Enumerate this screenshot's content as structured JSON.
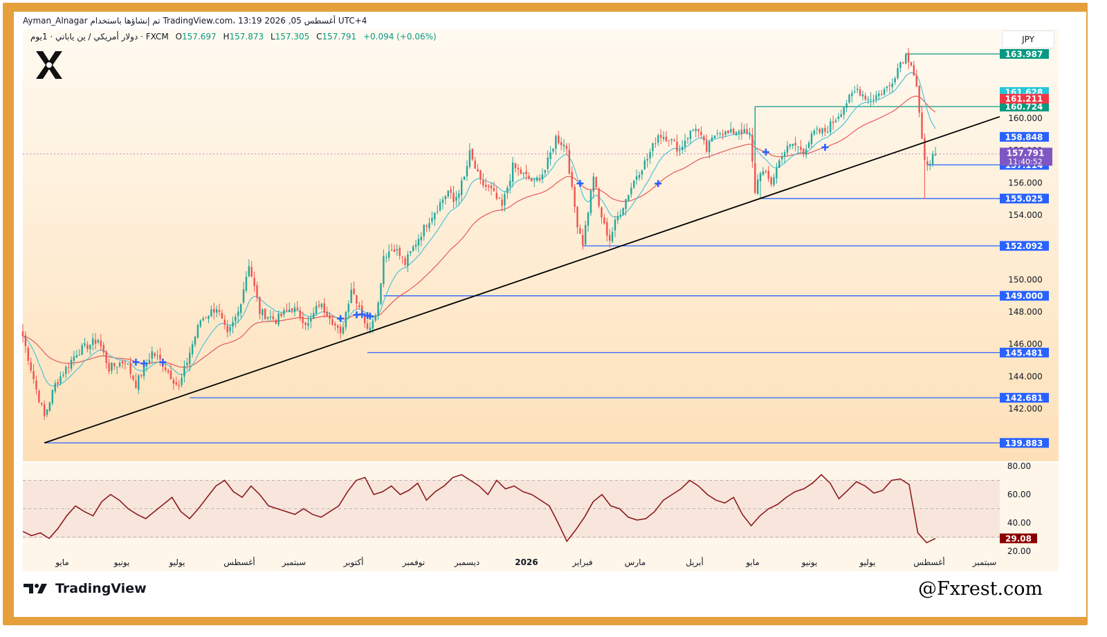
{
  "header": {
    "line1": "Ayman_Alnagar تم إنشاؤها باستخدام TradingView.com، 13:19 2026 ,05 أغسطس UTC+4",
    "symbol": "دولار أمريكي / ين ياباني · 1يوم · FXCM",
    "open_label": "O",
    "open": "157.697",
    "high_label": "H",
    "high": "157.873",
    "low_label": "L",
    "low": "157.305",
    "close_label": "C",
    "close": "157.791",
    "change": "+0.094 (+0.06%)"
  },
  "currency_button": "JPY",
  "brand": {
    "name": "TradingView",
    "watermark": "@Fxrest.com"
  },
  "colors": {
    "frame": "#e5a03c",
    "bull": "#26a69a",
    "bear": "#ef5350",
    "ma_fast": "#4fc3d9",
    "ma_slow": "#e35a5a",
    "level_blue": "#2962ff",
    "level_green": "#089981",
    "trendline": "#000000",
    "rsi_line": "#8b1a1a",
    "countdown": "#7e57c2",
    "signal_cross": "#2962ff"
  },
  "chart_data": [
    {
      "type": "candlestick",
      "symbol": "USD/JPY",
      "timeframe": "1D",
      "y_axis": {
        "range": [
          138.8,
          164.7
        ],
        "ticks": [
          "142.000",
          "144.000",
          "146.000",
          "148.000",
          "150.000",
          "152.000",
          "154.000",
          "156.000",
          "158.000",
          "160.000"
        ]
      },
      "x_axis": {
        "labels": [
          "مايو",
          "يونيو",
          "يوليو",
          "أغسطس",
          "سبتمبر",
          "أكتوبر",
          "نوفمبر",
          "ديسمبر",
          "2026",
          "فبراير",
          "مارس",
          "أبريل",
          "مايو",
          "يونيو",
          "يوليو",
          "أغسطس",
          "سبتمبر"
        ],
        "bold_label": "2026"
      },
      "anchors": [
        [
          0,
          146.5
        ],
        [
          5,
          143.2
        ],
        [
          8,
          141.5
        ],
        [
          12,
          143.5
        ],
        [
          20,
          145.5
        ],
        [
          28,
          146.3
        ],
        [
          32,
          144.5
        ],
        [
          38,
          145.0
        ],
        [
          42,
          143.5
        ],
        [
          48,
          145.5
        ],
        [
          52,
          144.8
        ],
        [
          58,
          143.3
        ],
        [
          62,
          145.5
        ],
        [
          66,
          147.5
        ],
        [
          72,
          148.3
        ],
        [
          76,
          146.5
        ],
        [
          80,
          148.0
        ],
        [
          84,
          151.0
        ],
        [
          88,
          148.0
        ],
        [
          94,
          147.5
        ],
        [
          100,
          148.3
        ],
        [
          106,
          147.2
        ],
        [
          110,
          148.5
        ],
        [
          114,
          147.8
        ],
        [
          118,
          146.5
        ],
        [
          122,
          149.5
        ],
        [
          126,
          148.0
        ],
        [
          128,
          146.8
        ],
        [
          132,
          148.5
        ],
        [
          134,
          151.5
        ],
        [
          138,
          152.0
        ],
        [
          142,
          151.0
        ],
        [
          146,
          152.3
        ],
        [
          150,
          153.5
        ],
        [
          154,
          154.5
        ],
        [
          158,
          155.5
        ],
        [
          160,
          154.8
        ],
        [
          164,
          156.3
        ],
        [
          166,
          157.8
        ],
        [
          170,
          156.0
        ],
        [
          174,
          155.5
        ],
        [
          178,
          154.5
        ],
        [
          182,
          157.0
        ],
        [
          186,
          156.5
        ],
        [
          190,
          156.0
        ],
        [
          194,
          156.8
        ],
        [
          198,
          158.8
        ],
        [
          202,
          158.2
        ],
        [
          204,
          155.5
        ],
        [
          206,
          153.5
        ],
        [
          208,
          152.3
        ],
        [
          210,
          154.3
        ],
        [
          212,
          156.5
        ],
        [
          214,
          154.5
        ],
        [
          216,
          153.3
        ],
        [
          218,
          152.5
        ],
        [
          220,
          153.5
        ],
        [
          224,
          155.0
        ],
        [
          228,
          156.5
        ],
        [
          232,
          157.5
        ],
        [
          236,
          159.0
        ],
        [
          240,
          158.8
        ],
        [
          244,
          158.0
        ],
        [
          246,
          158.7
        ],
        [
          250,
          159.5
        ],
        [
          254,
          158.0
        ],
        [
          258,
          159.3
        ],
        [
          262,
          159.0
        ],
        [
          266,
          159.3
        ],
        [
          270,
          158.9
        ],
        [
          272,
          155.5
        ],
        [
          274,
          156.8
        ],
        [
          278,
          156.0
        ],
        [
          282,
          157.8
        ],
        [
          286,
          158.4
        ],
        [
          290,
          158.0
        ],
        [
          294,
          159.1
        ],
        [
          298,
          159.2
        ],
        [
          302,
          160.0
        ],
        [
          306,
          161.0
        ],
        [
          310,
          161.8
        ],
        [
          314,
          161.2
        ],
        [
          318,
          161.5
        ],
        [
          322,
          162.0
        ],
        [
          326,
          163.5
        ],
        [
          328,
          163.9
        ],
        [
          330,
          163.5
        ],
        [
          332,
          162.0
        ],
        [
          334,
          158.5
        ],
        [
          335,
          157.2
        ],
        [
          336,
          157.3
        ],
        [
          338,
          157.6
        ],
        [
          339,
          157.79
        ]
      ],
      "moving_averages": [
        {
          "name": "fast",
          "last": "161.628"
        },
        {
          "name": "slow",
          "last": "161.211"
        }
      ],
      "horizontal_levels": [
        {
          "value": 163.987,
          "label": "163.987",
          "color": "green"
        },
        {
          "value": 160.724,
          "label": "160.724",
          "color": "green"
        },
        {
          "value": 157.114,
          "label": "157.114",
          "color": "blue"
        },
        {
          "value": 155.025,
          "label": "155.025",
          "color": "blue"
        },
        {
          "value": 152.092,
          "label": "152.092",
          "color": "blue"
        },
        {
          "value": 149.0,
          "label": "149.000",
          "color": "blue"
        },
        {
          "value": 145.481,
          "label": "145.481",
          "color": "blue"
        },
        {
          "value": 142.681,
          "label": "142.681",
          "color": "blue"
        },
        {
          "value": 139.883,
          "label": "139.883",
          "color": "blue"
        }
      ],
      "price_tags": [
        {
          "value": 161.628,
          "label": "161.628",
          "color": "cyan"
        },
        {
          "value": 161.211,
          "label": "161.211",
          "color": "red"
        },
        {
          "value": 158.848,
          "label": "158.848",
          "color": "blue"
        }
      ],
      "current_price": {
        "value": 157.791,
        "label": "157.791",
        "countdown": "11:40:52"
      },
      "trendline": {
        "from": [
          139.883
        ],
        "to": [
          160.1
        ],
        "label": ""
      },
      "signal_markers": [
        "cross",
        "cross",
        "cross",
        "cross",
        "cross",
        "cross",
        "cross",
        "cross",
        "cross",
        "cross",
        "cross",
        "cross"
      ]
    },
    {
      "type": "line",
      "indicator": "RSI",
      "y_axis": {
        "ticks": [
          "80.00",
          "60.00",
          "40.00",
          "20.00"
        ],
        "levels": [
          70,
          50,
          30
        ]
      },
      "values": [
        34,
        31,
        33,
        29,
        36,
        45,
        52,
        48,
        45,
        55,
        60,
        56,
        50,
        46,
        43,
        48,
        53,
        58,
        48,
        43,
        50,
        58,
        66,
        70,
        62,
        58,
        66,
        60,
        52,
        50,
        48,
        46,
        50,
        46,
        44,
        48,
        52,
        62,
        70,
        72,
        60,
        62,
        66,
        60,
        63,
        68,
        56,
        62,
        66,
        72,
        74,
        70,
        66,
        60,
        70,
        64,
        66,
        62,
        60,
        56,
        52,
        40,
        27,
        35,
        44,
        55,
        60,
        52,
        50,
        44,
        42,
        43,
        48,
        56,
        60,
        64,
        70,
        66,
        60,
        56,
        54,
        58,
        46,
        38,
        45,
        50,
        53,
        58,
        62,
        64,
        68,
        74,
        68,
        57,
        63,
        69,
        66,
        61,
        63,
        70,
        71,
        67,
        33,
        26,
        29
      ],
      "last": "29.08"
    }
  ]
}
